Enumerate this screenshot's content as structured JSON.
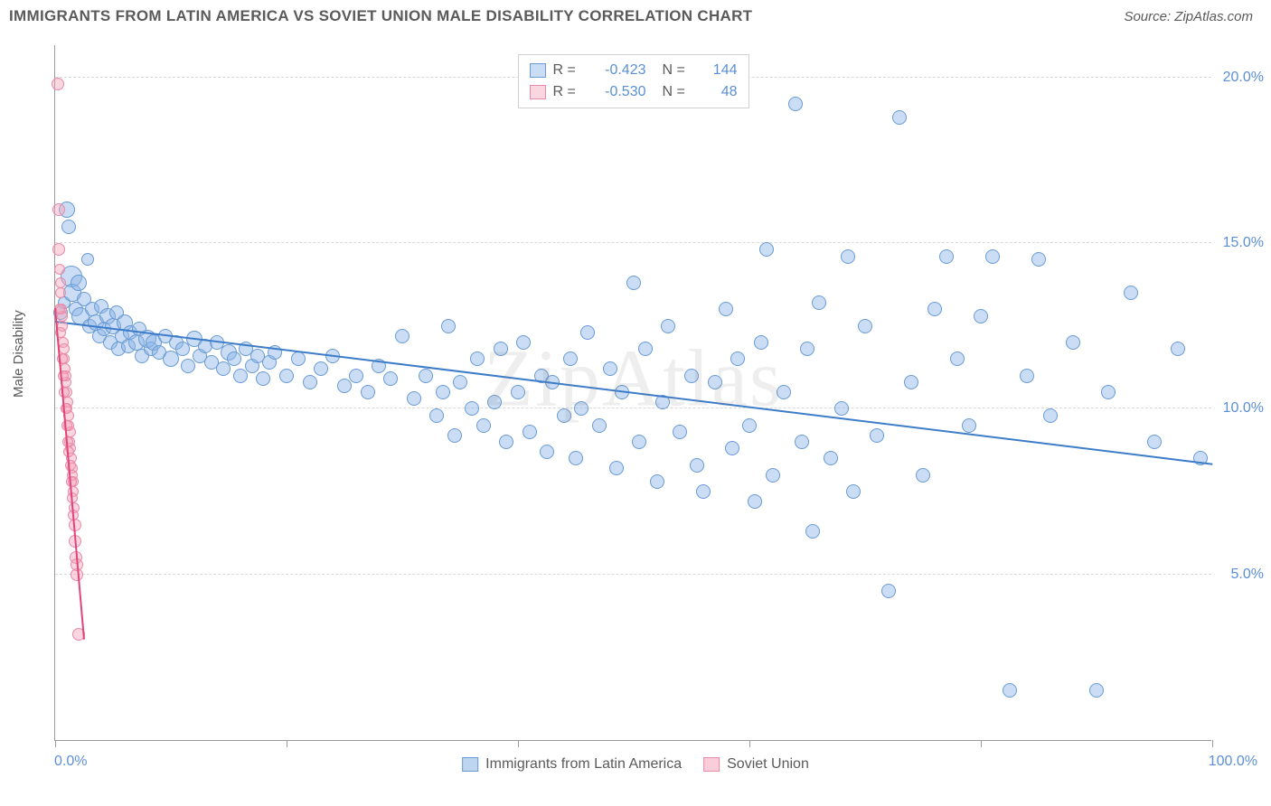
{
  "title": "IMMIGRANTS FROM LATIN AMERICA VS SOVIET UNION MALE DISABILITY CORRELATION CHART",
  "source": "Source: ZipAtlas.com",
  "watermark": "ZipAtlas",
  "chart": {
    "type": "scatter",
    "ylabel": "Male Disability",
    "xlim": [
      0,
      100
    ],
    "ylim": [
      0,
      21
    ],
    "x_ticks": [
      0,
      20,
      40,
      60,
      80,
      100
    ],
    "y_ticks": [
      5.0,
      10.0,
      15.0,
      20.0
    ],
    "y_tick_labels": [
      "5.0%",
      "10.0%",
      "15.0%",
      "20.0%"
    ],
    "x_min_label": "0.0%",
    "x_max_label": "100.0%",
    "grid_color": "#d8d8d8",
    "axis_color": "#9a9a9a",
    "tick_label_color": "#5b8fd6",
    "background_color": "#ffffff"
  },
  "series": [
    {
      "name": "Immigrants from Latin America",
      "fill": "rgba(137,179,230,0.45)",
      "stroke": "#6a9bd4",
      "trend_color": "#3d7cc9",
      "R": "-0.423",
      "N": "144",
      "trend": {
        "x1": 0,
        "y1": 12.6,
        "x2": 100,
        "y2": 8.3
      },
      "points": [
        [
          0.5,
          12.9,
          8
        ],
        [
          0.8,
          13.2,
          7
        ],
        [
          1.0,
          16.0,
          9
        ],
        [
          1.2,
          15.5,
          8
        ],
        [
          1.4,
          14.0,
          12
        ],
        [
          1.5,
          13.5,
          10
        ],
        [
          1.8,
          13.0,
          8
        ],
        [
          2.0,
          13.8,
          9
        ],
        [
          2.2,
          12.8,
          10
        ],
        [
          2.5,
          13.3,
          8
        ],
        [
          2.8,
          14.5,
          7
        ],
        [
          3.0,
          12.5,
          8
        ],
        [
          3.2,
          13.0,
          8
        ],
        [
          3.5,
          12.6,
          9
        ],
        [
          3.8,
          12.2,
          8
        ],
        [
          4.0,
          13.1,
          8
        ],
        [
          4.2,
          12.4,
          8
        ],
        [
          4.5,
          12.8,
          9
        ],
        [
          4.8,
          12.0,
          8
        ],
        [
          5.0,
          12.5,
          9
        ],
        [
          5.3,
          12.9,
          8
        ],
        [
          5.5,
          11.8,
          8
        ],
        [
          5.8,
          12.2,
          8
        ],
        [
          6.0,
          12.6,
          9
        ],
        [
          6.3,
          11.9,
          8
        ],
        [
          6.5,
          12.3,
          8
        ],
        [
          7.0,
          12.0,
          9
        ],
        [
          7.3,
          12.4,
          8
        ],
        [
          7.5,
          11.6,
          8
        ],
        [
          8.0,
          12.1,
          10
        ],
        [
          8.3,
          11.8,
          8
        ],
        [
          8.5,
          12.0,
          9
        ],
        [
          9.0,
          11.7,
          8
        ],
        [
          9.5,
          12.2,
          8
        ],
        [
          10.0,
          11.5,
          9
        ],
        [
          10.5,
          12.0,
          8
        ],
        [
          11.0,
          11.8,
          8
        ],
        [
          11.5,
          11.3,
          8
        ],
        [
          12.0,
          12.1,
          9
        ],
        [
          12.5,
          11.6,
          8
        ],
        [
          13.0,
          11.9,
          8
        ],
        [
          13.5,
          11.4,
          8
        ],
        [
          14.0,
          12.0,
          8
        ],
        [
          14.5,
          11.2,
          8
        ],
        [
          15.0,
          11.7,
          9
        ],
        [
          15.5,
          11.5,
          8
        ],
        [
          16.0,
          11.0,
          8
        ],
        [
          16.5,
          11.8,
          8
        ],
        [
          17.0,
          11.3,
          8
        ],
        [
          17.5,
          11.6,
          8
        ],
        [
          18.0,
          10.9,
          8
        ],
        [
          18.5,
          11.4,
          8
        ],
        [
          19.0,
          11.7,
          8
        ],
        [
          20.0,
          11.0,
          8
        ],
        [
          21.0,
          11.5,
          8
        ],
        [
          22.0,
          10.8,
          8
        ],
        [
          23.0,
          11.2,
          8
        ],
        [
          24.0,
          11.6,
          8
        ],
        [
          25.0,
          10.7,
          8
        ],
        [
          26.0,
          11.0,
          8
        ],
        [
          27.0,
          10.5,
          8
        ],
        [
          28.0,
          11.3,
          8
        ],
        [
          29.0,
          10.9,
          8
        ],
        [
          30.0,
          12.2,
          8
        ],
        [
          31.0,
          10.3,
          8
        ],
        [
          32.0,
          11.0,
          8
        ],
        [
          33.0,
          9.8,
          8
        ],
        [
          33.5,
          10.5,
          8
        ],
        [
          34.0,
          12.5,
          8
        ],
        [
          34.5,
          9.2,
          8
        ],
        [
          35.0,
          10.8,
          8
        ],
        [
          36.0,
          10.0,
          8
        ],
        [
          36.5,
          11.5,
          8
        ],
        [
          37.0,
          9.5,
          8
        ],
        [
          38.0,
          10.2,
          8
        ],
        [
          38.5,
          11.8,
          8
        ],
        [
          39.0,
          9.0,
          8
        ],
        [
          40.0,
          10.5,
          8
        ],
        [
          40.5,
          12.0,
          8
        ],
        [
          41.0,
          9.3,
          8
        ],
        [
          42.0,
          11.0,
          8
        ],
        [
          42.5,
          8.7,
          8
        ],
        [
          43.0,
          10.8,
          8
        ],
        [
          44.0,
          9.8,
          8
        ],
        [
          44.5,
          11.5,
          8
        ],
        [
          45.0,
          8.5,
          8
        ],
        [
          45.5,
          10.0,
          8
        ],
        [
          46.0,
          12.3,
          8
        ],
        [
          47.0,
          9.5,
          8
        ],
        [
          48.0,
          11.2,
          8
        ],
        [
          48.5,
          8.2,
          8
        ],
        [
          49.0,
          10.5,
          8
        ],
        [
          50.0,
          13.8,
          8
        ],
        [
          50.5,
          9.0,
          8
        ],
        [
          51.0,
          11.8,
          8
        ],
        [
          52.0,
          7.8,
          8
        ],
        [
          52.5,
          10.2,
          8
        ],
        [
          53.0,
          12.5,
          8
        ],
        [
          54.0,
          9.3,
          8
        ],
        [
          55.0,
          11.0,
          8
        ],
        [
          55.5,
          8.3,
          8
        ],
        [
          56.0,
          7.5,
          8
        ],
        [
          57.0,
          10.8,
          8
        ],
        [
          58.0,
          13.0,
          8
        ],
        [
          58.5,
          8.8,
          8
        ],
        [
          59.0,
          11.5,
          8
        ],
        [
          60.0,
          9.5,
          8
        ],
        [
          60.5,
          7.2,
          8
        ],
        [
          61.0,
          12.0,
          8
        ],
        [
          61.5,
          14.8,
          8
        ],
        [
          62.0,
          8.0,
          8
        ],
        [
          63.0,
          10.5,
          8
        ],
        [
          64.0,
          19.2,
          8
        ],
        [
          64.5,
          9.0,
          8
        ],
        [
          65.0,
          11.8,
          8
        ],
        [
          65.5,
          6.3,
          8
        ],
        [
          66.0,
          13.2,
          8
        ],
        [
          67.0,
          8.5,
          8
        ],
        [
          68.0,
          10.0,
          8
        ],
        [
          68.5,
          14.6,
          8
        ],
        [
          69.0,
          7.5,
          8
        ],
        [
          70.0,
          12.5,
          8
        ],
        [
          71.0,
          9.2,
          8
        ],
        [
          72.0,
          4.5,
          8
        ],
        [
          73.0,
          18.8,
          8
        ],
        [
          74.0,
          10.8,
          8
        ],
        [
          75.0,
          8.0,
          8
        ],
        [
          76.0,
          13.0,
          8
        ],
        [
          77.0,
          14.6,
          8
        ],
        [
          78.0,
          11.5,
          8
        ],
        [
          79.0,
          9.5,
          8
        ],
        [
          80.0,
          12.8,
          8
        ],
        [
          81.0,
          14.6,
          8
        ],
        [
          82.5,
          1.5,
          8
        ],
        [
          84.0,
          11.0,
          8
        ],
        [
          85.0,
          14.5,
          8
        ],
        [
          86.0,
          9.8,
          8
        ],
        [
          88.0,
          12.0,
          8
        ],
        [
          90.0,
          1.5,
          8
        ],
        [
          91.0,
          10.5,
          8
        ],
        [
          93.0,
          13.5,
          8
        ],
        [
          95.0,
          9.0,
          8
        ],
        [
          97.0,
          11.8,
          8
        ],
        [
          99.0,
          8.5,
          8
        ]
      ]
    },
    {
      "name": "Soviet Union",
      "fill": "rgba(244,164,186,0.45)",
      "stroke": "#e88aa8",
      "trend_color": "#e2447a",
      "R": "-0.530",
      "N": "48",
      "trend": {
        "x1": 0,
        "y1": 13.0,
        "x2": 2.5,
        "y2": 3.0
      },
      "points": [
        [
          0.2,
          19.8,
          7
        ],
        [
          0.3,
          16.0,
          7
        ],
        [
          0.35,
          14.8,
          7
        ],
        [
          0.4,
          14.2,
          6
        ],
        [
          0.45,
          13.5,
          6
        ],
        [
          0.5,
          13.8,
          6
        ],
        [
          0.55,
          13.0,
          6
        ],
        [
          0.6,
          12.5,
          6
        ],
        [
          0.65,
          12.8,
          6
        ],
        [
          0.7,
          12.0,
          6
        ],
        [
          0.75,
          11.5,
          6
        ],
        [
          0.8,
          11.8,
          6
        ],
        [
          0.85,
          11.2,
          6
        ],
        [
          0.9,
          10.8,
          6
        ],
        [
          0.95,
          11.0,
          6
        ],
        [
          1.0,
          10.5,
          6
        ],
        [
          1.05,
          10.0,
          6
        ],
        [
          1.1,
          10.2,
          6
        ],
        [
          1.15,
          9.8,
          6
        ],
        [
          1.2,
          9.5,
          6
        ],
        [
          1.25,
          9.0,
          6
        ],
        [
          1.3,
          9.3,
          6
        ],
        [
          1.35,
          8.8,
          6
        ],
        [
          1.4,
          8.5,
          6
        ],
        [
          1.45,
          8.2,
          6
        ],
        [
          1.5,
          8.0,
          6
        ],
        [
          1.55,
          7.5,
          6
        ],
        [
          1.6,
          7.8,
          6
        ],
        [
          1.65,
          7.0,
          6
        ],
        [
          1.7,
          6.5,
          7
        ],
        [
          1.75,
          6.0,
          7
        ],
        [
          1.8,
          5.5,
          7
        ],
        [
          1.85,
          5.0,
          7
        ],
        [
          1.9,
          5.3,
          7
        ],
        [
          2.0,
          3.2,
          7
        ],
        [
          0.4,
          13.0,
          6
        ],
        [
          0.5,
          12.3,
          6
        ],
        [
          0.6,
          11.5,
          6
        ],
        [
          0.7,
          11.0,
          6
        ],
        [
          0.8,
          10.5,
          6
        ],
        [
          0.9,
          10.0,
          6
        ],
        [
          1.0,
          9.5,
          6
        ],
        [
          1.1,
          9.0,
          6
        ],
        [
          1.2,
          8.7,
          6
        ],
        [
          1.3,
          8.3,
          6
        ],
        [
          1.4,
          7.8,
          6
        ],
        [
          1.5,
          7.3,
          6
        ],
        [
          1.6,
          6.8,
          6
        ]
      ]
    }
  ],
  "legend_top_labels": {
    "R": "R =",
    "N": "N ="
  },
  "legend_bottom": [
    {
      "label": "Immigrants from Latin America",
      "fill": "rgba(137,179,230,0.55)",
      "stroke": "#6a9bd4"
    },
    {
      "label": "Soviet Union",
      "fill": "rgba(244,164,186,0.55)",
      "stroke": "#e88aa8"
    }
  ]
}
